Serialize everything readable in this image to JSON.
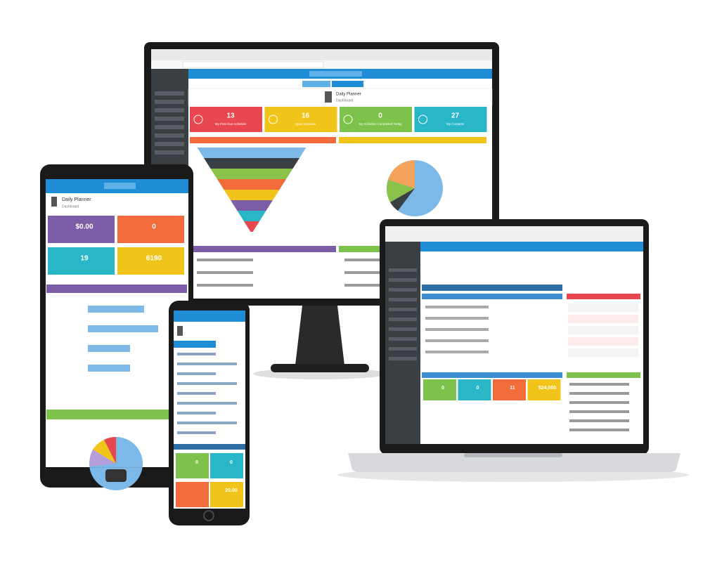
{
  "monitor": {
    "page_title": "Daily Planner",
    "page_subtitle": "Dashboard",
    "tiles": [
      {
        "value": "13",
        "label": "My Past Due Activities"
      },
      {
        "value": "16",
        "label": "Open Activities"
      },
      {
        "value": "0",
        "label": "My Activities Completed Today"
      },
      {
        "value": "27",
        "label": "My Contacts"
      }
    ]
  },
  "tablet": {
    "page_title": "Daily Planner",
    "page_subtitle": "Dashboard",
    "tiles": [
      {
        "value": "$0.00"
      },
      {
        "value": "0"
      },
      {
        "value": "19"
      },
      {
        "value": "6190"
      }
    ]
  },
  "laptop": {
    "tiles": [
      {
        "value": "0"
      },
      {
        "value": "0"
      },
      {
        "value": "11"
      },
      {
        "value": "$24,000"
      }
    ]
  },
  "phone": {
    "tiles": [
      {
        "value": "0"
      },
      {
        "value": "0"
      },
      {
        "value": "20.00"
      }
    ]
  }
}
